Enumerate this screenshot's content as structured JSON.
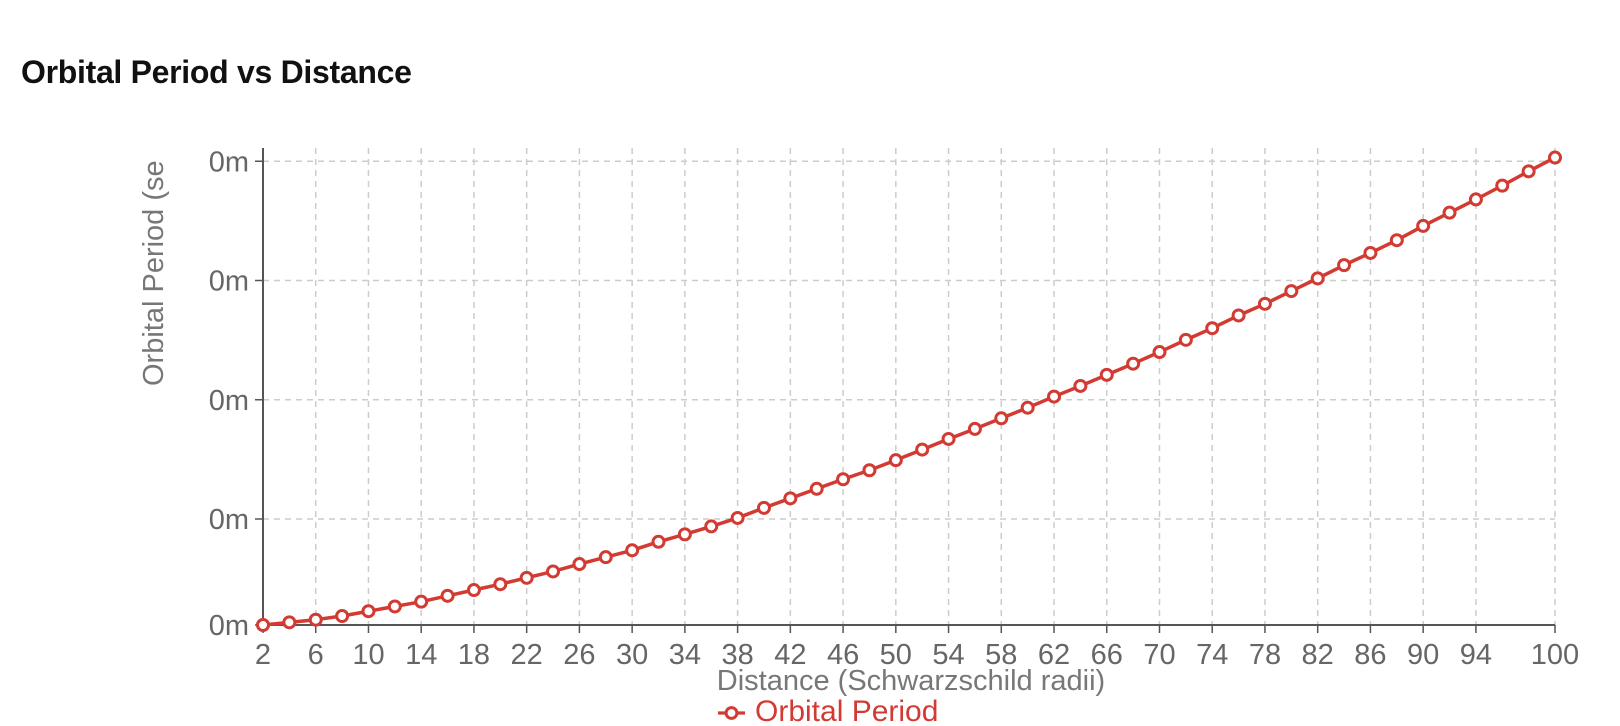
{
  "title": "Orbital Period vs Distance",
  "colors": {
    "series": "#d23a32",
    "grid": "#cccccc",
    "axis": "#555555",
    "tick_text": "#666666"
  },
  "chart_data": {
    "type": "line",
    "title": "Orbital Period vs Distance",
    "xlabel": "Distance (Schwarzschild radii)",
    "ylabel": "Orbital Period (se",
    "x_ticks": [
      2,
      6,
      10,
      14,
      18,
      22,
      26,
      30,
      34,
      38,
      42,
      46,
      50,
      54,
      58,
      62,
      66,
      70,
      74,
      78,
      82,
      86,
      90,
      94,
      100
    ],
    "y_tick_labels": [
      "0m",
      "0m",
      "0m",
      "0m",
      "0m"
    ],
    "y_tick_values": [
      0.0,
      2e-05,
      4.25e-05,
      6.5e-05,
      8.75e-05
    ],
    "xlim": [
      2,
      100
    ],
    "ylim": [
      0,
      9e-05
    ],
    "grid": true,
    "legend_position": "bottom",
    "series": [
      {
        "name": "Orbital Period",
        "x": [
          2,
          4,
          6,
          8,
          10,
          12,
          14,
          16,
          18,
          20,
          22,
          24,
          26,
          28,
          30,
          32,
          34,
          36,
          38,
          40,
          42,
          44,
          46,
          48,
          50,
          52,
          54,
          56,
          58,
          60,
          62,
          64,
          66,
          68,
          70,
          72,
          74,
          76,
          78,
          80,
          82,
          84,
          86,
          88,
          90,
          92,
          94,
          96,
          98,
          100
        ],
        "values": [
          0.0,
          5e-07,
          1e-06,
          1.7e-06,
          2.6e-06,
          3.5e-06,
          4.4e-06,
          5.5e-06,
          6.6e-06,
          7.7e-06,
          8.9e-06,
          1.01e-05,
          1.15e-05,
          1.28e-05,
          1.41e-05,
          1.57e-05,
          1.71e-05,
          1.86e-05,
          2.02e-05,
          2.21e-05,
          2.39e-05,
          2.57e-05,
          2.75e-05,
          2.92e-05,
          3.11e-05,
          3.31e-05,
          3.51e-05,
          3.7e-05,
          3.9e-05,
          4.1e-05,
          4.31e-05,
          4.51e-05,
          4.72e-05,
          4.93e-05,
          5.15e-05,
          5.38e-05,
          5.6e-05,
          5.84e-05,
          6.06e-05,
          6.3e-05,
          6.54e-05,
          6.79e-05,
          7.02e-05,
          7.26e-05,
          7.53e-05,
          7.78e-05,
          8.03e-05,
          8.29e-05,
          8.56e-05,
          8.82e-05
        ]
      }
    ]
  }
}
